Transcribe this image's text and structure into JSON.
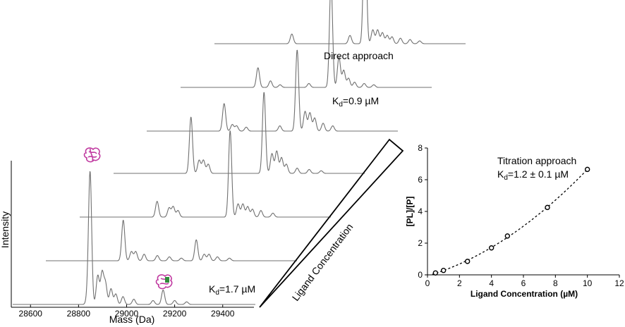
{
  "chart_data": [
    {
      "type": "line",
      "subtype": "stacked-mass-spectra",
      "xlabel": "Mass (Da)",
      "ylabel": "Intensity",
      "x_ticks": [
        28600,
        28800,
        29000,
        29200,
        29400
      ],
      "xlim": [
        28520,
        29530
      ],
      "series": [
        {
          "peaks": [
            {
              "x": 28838,
              "y": 0.06
            },
            {
              "x": 28848,
              "y": 1.0
            },
            {
              "x": 28880,
              "y": 0.22
            },
            {
              "x": 28898,
              "y": 0.24
            },
            {
              "x": 28912,
              "y": 0.16
            },
            {
              "x": 28935,
              "y": 0.12
            },
            {
              "x": 28955,
              "y": 0.08
            },
            {
              "x": 28985,
              "y": 0.06
            },
            {
              "x": 29030,
              "y": 0.04
            },
            {
              "x": 29110,
              "y": 0.03
            },
            {
              "x": 29152,
              "y": 0.11
            },
            {
              "x": 29200,
              "y": 0.03
            },
            {
              "x": 29250,
              "y": 0.02
            }
          ]
        },
        {
          "peaks": [
            {
              "x": 28848,
              "y": 0.31
            },
            {
              "x": 28882,
              "y": 0.07
            },
            {
              "x": 28900,
              "y": 0.07
            },
            {
              "x": 28935,
              "y": 0.05
            },
            {
              "x": 28990,
              "y": 0.04
            },
            {
              "x": 29040,
              "y": 0.03
            },
            {
              "x": 29090,
              "y": 0.02
            },
            {
              "x": 29152,
              "y": 0.16
            },
            {
              "x": 29185,
              "y": 0.05
            },
            {
              "x": 29205,
              "y": 0.05
            },
            {
              "x": 29240,
              "y": 0.03
            },
            {
              "x": 29290,
              "y": 0.02
            }
          ]
        },
        {
          "peaks": [
            {
              "x": 28848,
              "y": 0.12
            },
            {
              "x": 28898,
              "y": 0.07
            },
            {
              "x": 28915,
              "y": 0.08
            },
            {
              "x": 28935,
              "y": 0.05
            },
            {
              "x": 29152,
              "y": 0.66
            },
            {
              "x": 29185,
              "y": 0.1
            },
            {
              "x": 29205,
              "y": 0.1
            },
            {
              "x": 29225,
              "y": 0.08
            },
            {
              "x": 29245,
              "y": 0.06
            },
            {
              "x": 29280,
              "y": 0.05
            },
            {
              "x": 29330,
              "y": 0.03
            }
          ]
        },
        {
          "peaks": [
            {
              "x": 28848,
              "y": 0.43
            },
            {
              "x": 28882,
              "y": 0.1
            },
            {
              "x": 28900,
              "y": 0.1
            },
            {
              "x": 28920,
              "y": 0.07
            },
            {
              "x": 29152,
              "y": 0.62
            },
            {
              "x": 29185,
              "y": 0.15
            },
            {
              "x": 29205,
              "y": 0.17
            },
            {
              "x": 29225,
              "y": 0.12
            },
            {
              "x": 29245,
              "y": 0.07
            },
            {
              "x": 29290,
              "y": 0.04
            },
            {
              "x": 29340,
              "y": 0.03
            },
            {
              "x": 29390,
              "y": 0.02
            }
          ]
        },
        {
          "peaks": [
            {
              "x": 28848,
              "y": 0.21
            },
            {
              "x": 28882,
              "y": 0.05
            },
            {
              "x": 28900,
              "y": 0.04
            },
            {
              "x": 28940,
              "y": 0.03
            },
            {
              "x": 29080,
              "y": 0.04
            },
            {
              "x": 29152,
              "y": 0.62
            },
            {
              "x": 29185,
              "y": 0.15
            },
            {
              "x": 29205,
              "y": 0.14
            },
            {
              "x": 29225,
              "y": 0.1
            },
            {
              "x": 29260,
              "y": 0.06
            },
            {
              "x": 29300,
              "y": 0.04
            }
          ]
        },
        {
          "peaks": [
            {
              "x": 28848,
              "y": 0.15
            },
            {
              "x": 28900,
              "y": 0.05
            },
            {
              "x": 28940,
              "y": 0.02
            },
            {
              "x": 29060,
              "y": 0.03
            },
            {
              "x": 29152,
              "y": 0.81
            },
            {
              "x": 29185,
              "y": 0.23
            },
            {
              "x": 29205,
              "y": 0.13
            },
            {
              "x": 29225,
              "y": 0.07
            },
            {
              "x": 29250,
              "y": 0.04
            },
            {
              "x": 29290,
              "y": 0.03
            },
            {
              "x": 29330,
              "y": 0.02
            }
          ]
        },
        {
          "peaks": [
            {
              "x": 28848,
              "y": 0.07
            },
            {
              "x": 29090,
              "y": 0.06
            },
            {
              "x": 29152,
              "y": 0.97
            },
            {
              "x": 29185,
              "y": 0.1
            },
            {
              "x": 29205,
              "y": 0.1
            },
            {
              "x": 29225,
              "y": 0.08
            },
            {
              "x": 29245,
              "y": 0.06
            },
            {
              "x": 29265,
              "y": 0.05
            },
            {
              "x": 29300,
              "y": 0.04
            },
            {
              "x": 29340,
              "y": 0.03
            },
            {
              "x": 29380,
              "y": 0.02
            }
          ]
        }
      ],
      "annotations": {
        "direct_title": "Direct approach",
        "kd_top_prefix": "K",
        "kd_top_sub": "d",
        "kd_top_value": "=0.9 µM",
        "kd_bottom_prefix": "K",
        "kd_bottom_sub": "d",
        "kd_bottom_value": "=1.7 µM",
        "wedge_label": "Ligand Concentration"
      },
      "colors": {
        "spectra": "#707070",
        "protein_icon": "#c03aa0",
        "ligand_icon": "#2e8b3a"
      }
    },
    {
      "type": "scatter",
      "xlabel": "Ligand Concentration (µM)",
      "ylabel": "[PL]/[P]",
      "xlim": [
        0,
        12
      ],
      "ylim": [
        0,
        8
      ],
      "x_ticks": [
        0,
        2,
        4,
        6,
        8,
        10,
        12
      ],
      "y_ticks": [
        0,
        2,
        4,
        6,
        8
      ],
      "points": [
        {
          "x": 0.5,
          "y": 0.12
        },
        {
          "x": 1.0,
          "y": 0.28
        },
        {
          "x": 2.5,
          "y": 0.85
        },
        {
          "x": 4.0,
          "y": 1.7
        },
        {
          "x": 5.0,
          "y": 2.45
        },
        {
          "x": 7.5,
          "y": 4.25
        },
        {
          "x": 10.0,
          "y": 6.65
        }
      ],
      "fit": {
        "style": "dashed",
        "x_range": [
          0.3,
          10.1
        ]
      },
      "annotation_title": "Titration approach",
      "annotation_kd_prefix": "K",
      "annotation_kd_sub": "d",
      "annotation_kd_value": "=1.2 ± 0.1 µM"
    }
  ]
}
